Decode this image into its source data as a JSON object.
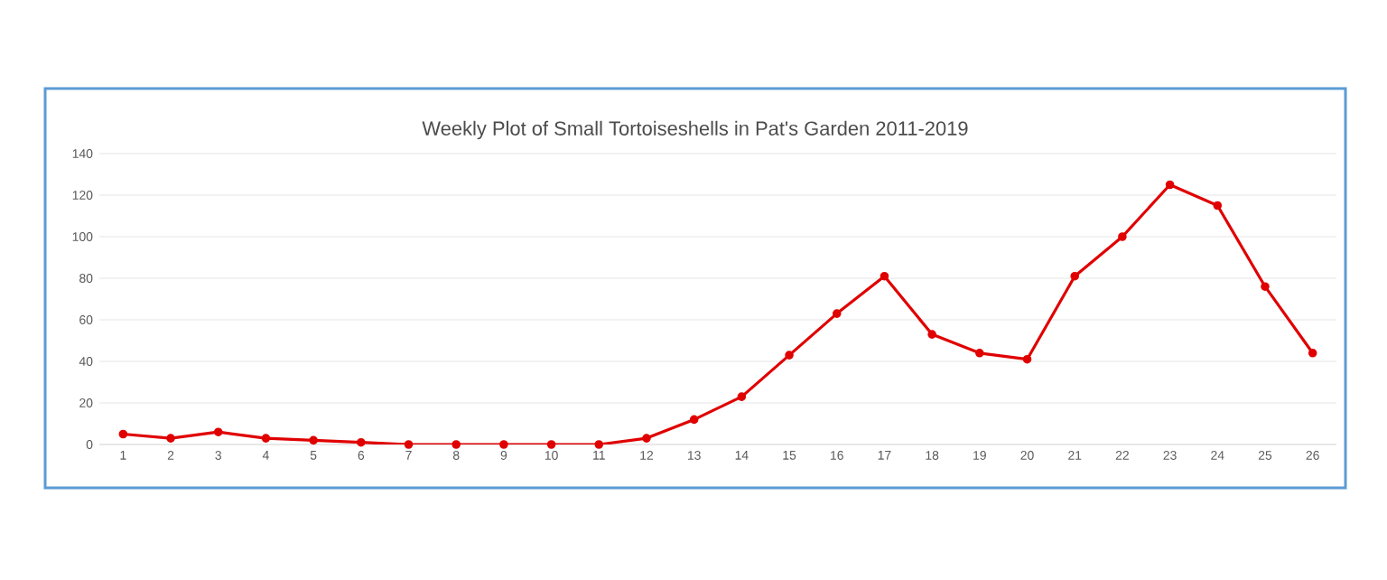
{
  "chart_data": {
    "type": "line",
    "title": "Weekly Plot of Small Tortoiseshells in Pat's Garden 2011-2019",
    "categories": [
      "1",
      "2",
      "3",
      "4",
      "5",
      "6",
      "7",
      "8",
      "9",
      "10",
      "11",
      "12",
      "13",
      "14",
      "15",
      "16",
      "17",
      "18",
      "19",
      "20",
      "21",
      "22",
      "23",
      "24",
      "25",
      "26"
    ],
    "series": [
      {
        "color": "#e00000",
        "values": [
          5,
          3,
          6,
          3,
          2,
          1,
          0,
          0,
          0,
          0,
          0,
          3,
          12,
          23,
          43,
          63,
          81,
          53,
          44,
          41,
          81,
          100,
          125,
          115,
          76,
          44
        ]
      }
    ],
    "ylim": [
      0,
      140
    ],
    "yticks": [
      0,
      20,
      40,
      60,
      80,
      100,
      120,
      140
    ],
    "grid": "y",
    "marker": "circle",
    "line_style": "solid"
  }
}
